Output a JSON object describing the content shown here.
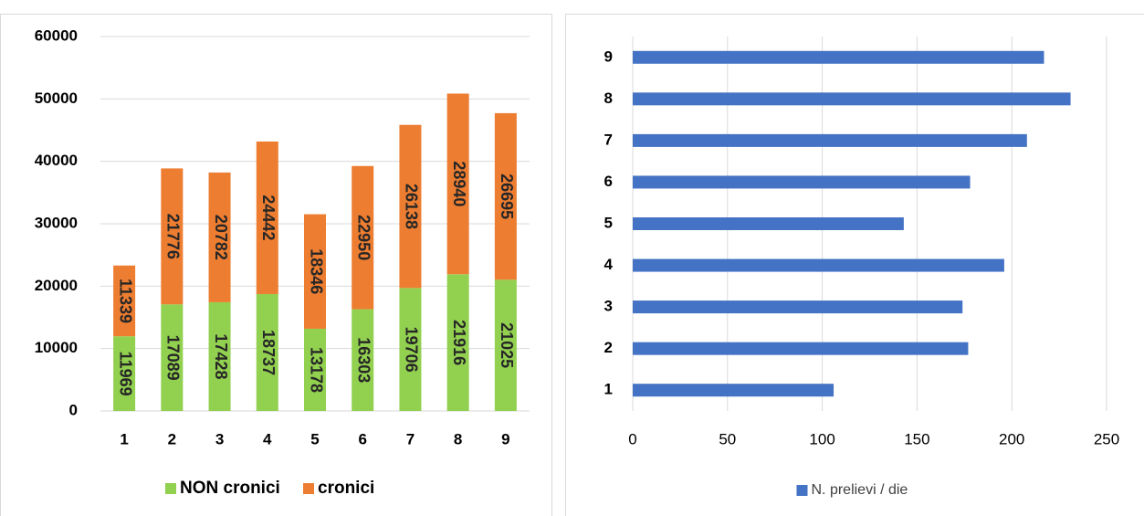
{
  "chart_data": [
    {
      "type": "bar",
      "stacked": true,
      "orientation": "vertical",
      "categories": [
        "1",
        "2",
        "3",
        "4",
        "5",
        "6",
        "7",
        "8",
        "9"
      ],
      "series": [
        {
          "name": "NON cronici",
          "color": "#92d050",
          "values": [
            11969,
            17089,
            17428,
            18737,
            13178,
            16303,
            19706,
            21916,
            21025
          ]
        },
        {
          "name": "cronici",
          "color": "#ed7d31",
          "values": [
            11339,
            21776,
            20782,
            24442,
            18346,
            22950,
            26138,
            28940,
            26695
          ]
        }
      ],
      "ylim": [
        0,
        60000
      ],
      "yticks": [
        0,
        10000,
        20000,
        30000,
        40000,
        50000,
        60000
      ],
      "grid": true,
      "data_labels": true,
      "legend": "bottom"
    },
    {
      "type": "bar",
      "stacked": false,
      "orientation": "horizontal",
      "categories": [
        "1",
        "2",
        "3",
        "4",
        "5",
        "6",
        "7",
        "8",
        "9"
      ],
      "series": [
        {
          "name": "N. prelievi / die",
          "color": "#4472c4",
          "values": [
            106,
            177,
            174,
            196,
            143,
            178,
            208,
            231,
            217
          ]
        }
      ],
      "xlim": [
        0,
        250
      ],
      "xticks": [
        0,
        50,
        100,
        150,
        200,
        250
      ],
      "grid": true,
      "data_labels": false,
      "legend": "bottom"
    }
  ]
}
